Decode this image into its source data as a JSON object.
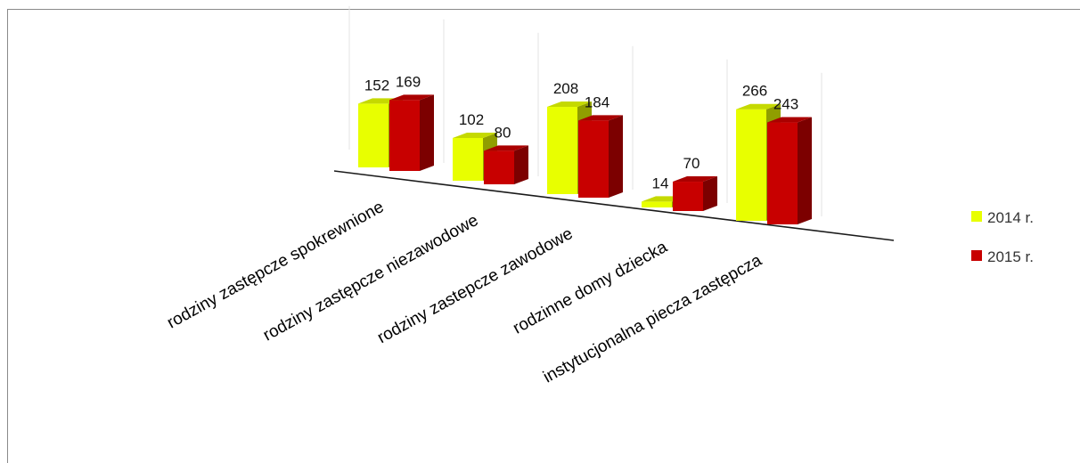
{
  "chart_data": {
    "type": "bar",
    "categories": [
      "rodziny zastępcze spokrewnione",
      "rodziny zastępcze niezawodowe",
      "rodziny zastepcze zawodowe",
      "rodzinne domy dziecka",
      "instytucjonalna piecza zastępcza"
    ],
    "series": [
      {
        "name": "2014 r.",
        "values": [
          152,
          102,
          208,
          14,
          266
        ],
        "color": "#e8ff00"
      },
      {
        "name": "2015 r.",
        "values": [
          169,
          80,
          184,
          70,
          243
        ],
        "color": "#c80000"
      }
    ],
    "title": "",
    "xlabel": "",
    "ylabel": "",
    "ylim": [
      0,
      300
    ],
    "grid": true,
    "legend": "right",
    "style": "3d-clustered-column"
  }
}
